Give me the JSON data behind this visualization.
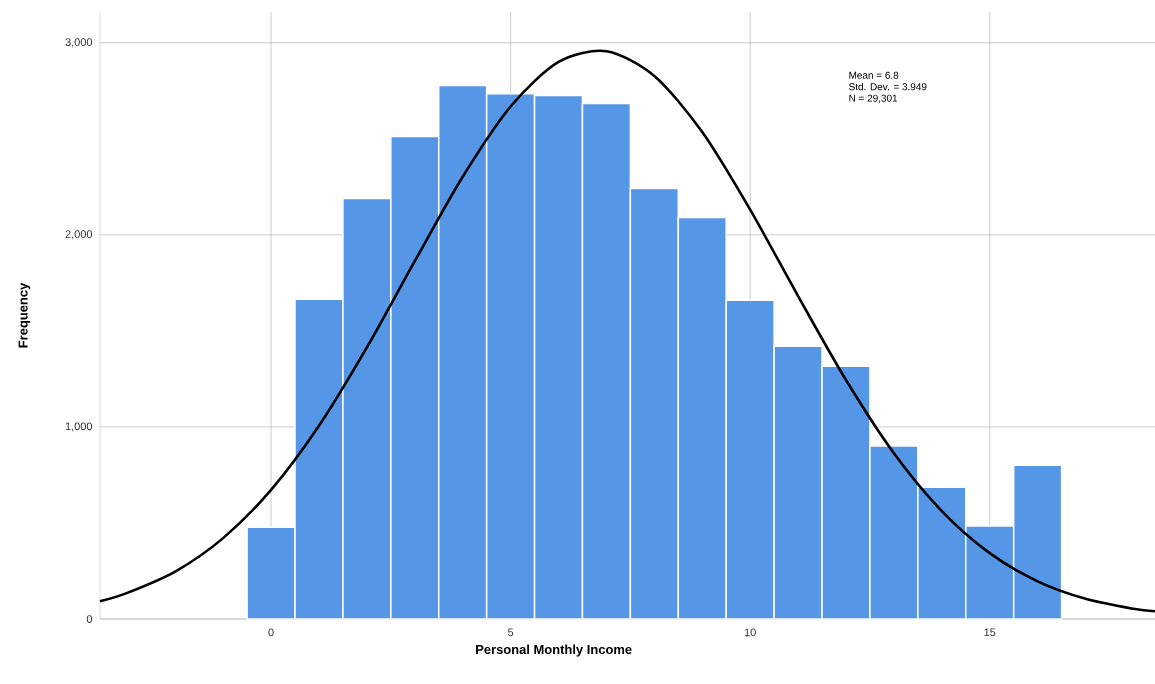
{
  "chart_data": {
    "type": "histogram",
    "xlabel": "Personal Monthly Income",
    "ylabel": "Frequency",
    "series": [
      {
        "color": "#5596e6",
        "bins": [
          -0.5,
          0.5,
          1.5,
          2.5,
          3.5,
          4.5,
          5.5,
          6.5,
          7.5,
          8.5,
          9.5,
          10.5,
          11.5,
          12.5,
          13.5,
          14.5,
          15.5,
          16.5
        ],
        "values": [
          478,
          1664,
          2189,
          2512,
          2777,
          2735,
          2725,
          2683,
          2241,
          2090,
          1659,
          1420,
          1316,
          900,
          686,
          484,
          801
        ]
      },
      {
        "type": "line",
        "color": "#000000",
        "x": [
          -3.57,
          -3,
          -2,
          -1,
          0,
          1,
          2,
          3,
          4,
          5,
          6,
          7,
          8,
          9,
          10,
          11,
          12,
          13,
          14,
          15,
          16,
          17,
          18,
          18.45
        ],
        "values": [
          92,
          136,
          247,
          421,
          672,
          1006,
          1414,
          1863,
          2302,
          2668,
          2900,
          2956,
          2827,
          2535,
          2131,
          1681,
          1244,
          863,
          562,
          343,
          196,
          105,
          53,
          40
        ]
      }
    ],
    "annotations": [
      "Mean = 6.8",
      "Std. Dev. = 3.949",
      "N = 29,301"
    ],
    "xlim": [
      -3.57,
      18.45
    ],
    "ylim": [
      0,
      3160
    ],
    "xticks": [
      0,
      5,
      10,
      15
    ],
    "yticks": [
      0,
      {
        "value": 1000,
        "label": "1,000"
      },
      {
        "value": 2000,
        "label": "2,000"
      },
      {
        "value": 3000,
        "label": "3,000"
      }
    ],
    "grid": true
  }
}
